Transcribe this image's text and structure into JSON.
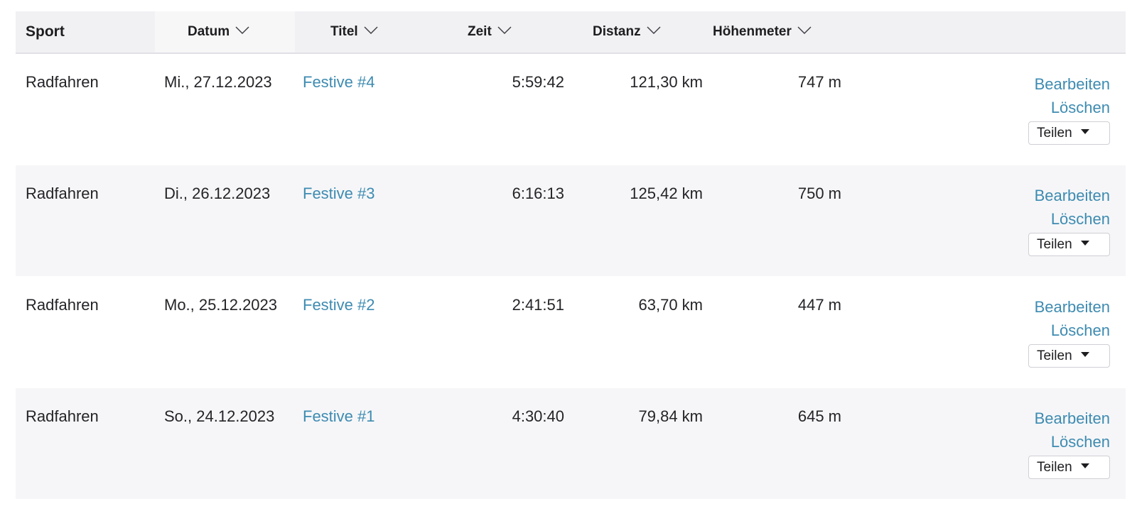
{
  "table": {
    "columns": {
      "sport": "Sport",
      "datum": "Datum",
      "titel": "Titel",
      "zeit": "Zeit",
      "distanz": "Distanz",
      "hoehenmeter": "Höhenmeter"
    },
    "rows": [
      {
        "sport": "Radfahren",
        "datum": "Mi., 27.12.2023",
        "titel": "Festive #4",
        "zeit": "5:59:42",
        "distanz": "121,30 km",
        "hoehenmeter": "747 m"
      },
      {
        "sport": "Radfahren",
        "datum": "Di., 26.12.2023",
        "titel": "Festive #3",
        "zeit": "6:16:13",
        "distanz": "125,42 km",
        "hoehenmeter": "750 m"
      },
      {
        "sport": "Radfahren",
        "datum": "Mo., 25.12.2023",
        "titel": "Festive #2",
        "zeit": "2:41:51",
        "distanz": "63,70 km",
        "hoehenmeter": "447 m"
      },
      {
        "sport": "Radfahren",
        "datum": "So., 24.12.2023",
        "titel": "Festive #1",
        "zeit": "4:30:40",
        "distanz": "79,84 km",
        "hoehenmeter": "645 m"
      }
    ],
    "actions": {
      "edit": "Bearbeiten",
      "delete": "Löschen",
      "share": "Teilen"
    }
  },
  "colors": {
    "link": "#3d8bb1",
    "header_bg": "#f1f1f4",
    "alt_row_bg": "#f6f6f8"
  },
  "icons": {
    "sort": "chevron-down-icon",
    "share_dropdown": "caret-down-icon"
  }
}
